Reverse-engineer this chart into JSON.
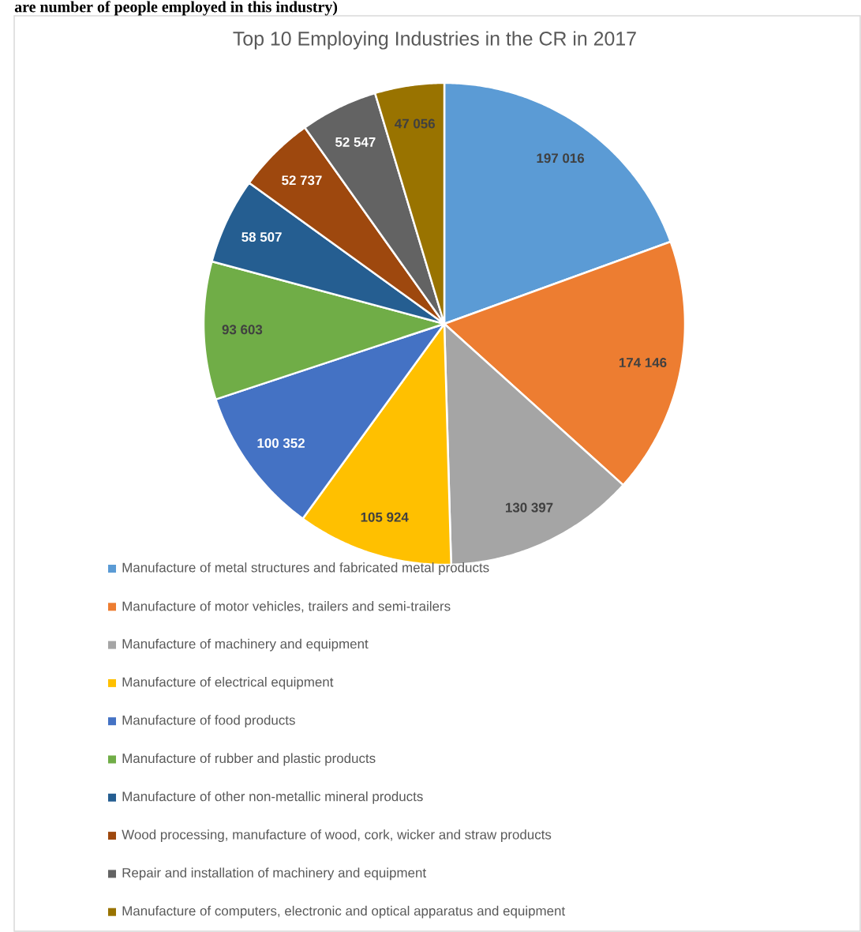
{
  "chart_data": {
    "type": "pie",
    "title": "Top 10 Employing Industries in the CR in 2017",
    "annotations": [
      "are number of people employed in this industry)"
    ],
    "categories": [
      "Manufacture of metal structures and fabricated metal products",
      "Manufacture of motor vehicles, trailers and semi-trailers",
      "Manufacture of machinery and equipment",
      "Manufacture of electrical equipment",
      "Manufacture of food products",
      "Manufacture of rubber and plastic products",
      "Manufacture of other non-metallic mineral products",
      "Wood processing, manufacture of wood, cork, wicker and straw products",
      "Repair and installation of machinery and equipment",
      "Manufacture of computers, electronic and optical apparatus and equipment"
    ],
    "values": [
      197016,
      174146,
      130397,
      105924,
      100352,
      93603,
      58507,
      52737,
      52547,
      47056
    ],
    "colors": [
      "#5b9bd5",
      "#ed7d31",
      "#a5a5a5",
      "#ffc000",
      "#4472c4",
      "#70ad47",
      "#255e91",
      "#9e480e",
      "#636363",
      "#997300"
    ],
    "data_labels": true,
    "legend": "bottom"
  }
}
